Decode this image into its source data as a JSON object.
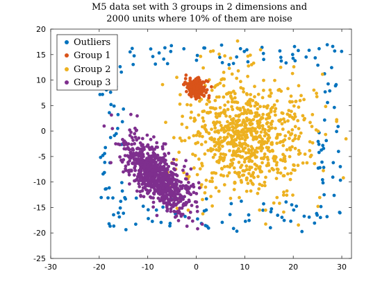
{
  "chart_data": {
    "type": "scatter",
    "title": "M5 data set with 3 groups in 2 dimensions and 2000 units where 10% of them are noise",
    "title_lines": [
      "M5 data set with 3 groups in 2 dimensions and",
      "2000 units where 10% of them are noise"
    ],
    "xlabel": "",
    "ylabel": "",
    "xlim": [
      -30,
      32
    ],
    "ylim": [
      -25,
      20
    ],
    "xticks": [
      -30,
      -20,
      -10,
      0,
      10,
      20,
      30
    ],
    "yticks": [
      -25,
      -20,
      -15,
      -10,
      -5,
      0,
      5,
      10,
      15,
      20
    ],
    "grid": false,
    "legend_position": "top-left",
    "total_units": 2000,
    "noise_fraction": 0.1,
    "series": [
      {
        "name": "Outliers",
        "color": "#0072BD",
        "count": 200,
        "distribution": "uniform",
        "x_range": [
          -20,
          30
        ],
        "y_range": [
          -20,
          17
        ],
        "excluded_region": {
          "x": [
            -15,
            25
          ],
          "y": [
            -13,
            13
          ]
        }
      },
      {
        "name": "Group 1",
        "color": "#D95319",
        "count": 200,
        "distribution": "normal",
        "center": [
          0,
          8.5
        ],
        "std": [
          1.0,
          1.0
        ],
        "corr": 0
      },
      {
        "name": "Group 2",
        "color": "#EDB120",
        "count": 800,
        "distribution": "normal",
        "center": [
          10,
          -1
        ],
        "std": [
          6.5,
          6
        ],
        "corr": 0
      },
      {
        "name": "Group 3",
        "color": "#7E2F8E",
        "count": 800,
        "distribution": "normal",
        "center": [
          -8,
          -9
        ],
        "std": [
          3.5,
          3.5
        ],
        "corr": -0.65
      }
    ]
  }
}
